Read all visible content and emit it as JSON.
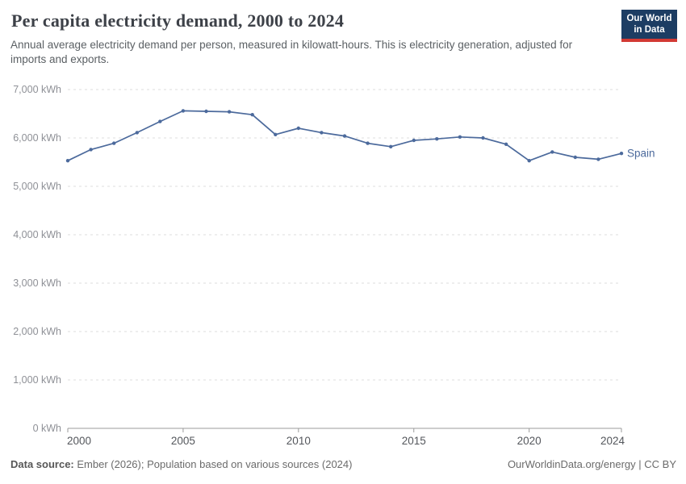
{
  "header": {
    "title": "Per capita electricity demand, 2000 to 2024",
    "subtitle": "Annual average electricity demand per person, measured in kilowatt-hours. This is electricity generation, adjusted for imports and exports.",
    "logo_line1": "Our World",
    "logo_line2": "in Data"
  },
  "chart_data": {
    "type": "line",
    "title": "Per capita electricity demand, 2000 to 2024",
    "xlabel": "",
    "ylabel": "kWh",
    "x": [
      2000,
      2001,
      2002,
      2003,
      2004,
      2005,
      2006,
      2007,
      2008,
      2009,
      2010,
      2011,
      2012,
      2013,
      2014,
      2015,
      2016,
      2017,
      2018,
      2019,
      2020,
      2021,
      2022,
      2023,
      2024
    ],
    "series": [
      {
        "name": "Spain",
        "color": "#4c6a9c",
        "values": [
          5530,
          5760,
          5890,
          6110,
          6340,
          6560,
          6550,
          6540,
          6480,
          6070,
          6200,
          6110,
          6040,
          5890,
          5820,
          5950,
          5980,
          6020,
          6000,
          5870,
          5530,
          5710,
          5600,
          5560,
          5680
        ]
      }
    ],
    "xlim": [
      2000,
      2024
    ],
    "ylim": [
      0,
      7000
    ],
    "x_ticks": [
      2000,
      2005,
      2010,
      2015,
      2020,
      2024
    ],
    "y_ticks": [
      0,
      1000,
      2000,
      3000,
      4000,
      5000,
      6000,
      7000
    ],
    "y_tick_suffix": " kWh",
    "grid": "horizontal-dashed",
    "legend_position": "line-end-label"
  },
  "footer": {
    "source_label": "Data source:",
    "source_text": "Ember (2026); Population based on various sources (2024)",
    "attribution": "OurWorldinData.org/energy | CC BY"
  },
  "colors": {
    "line": "#4c6a9c",
    "grid": "#dcdcdc",
    "axis": "#9b9b9b",
    "logo_bg": "#1d3d63",
    "logo_stripe": "#d23a34",
    "title": "#3d4148",
    "subtitle": "#5b6064",
    "footer": "#6b6b6b"
  }
}
